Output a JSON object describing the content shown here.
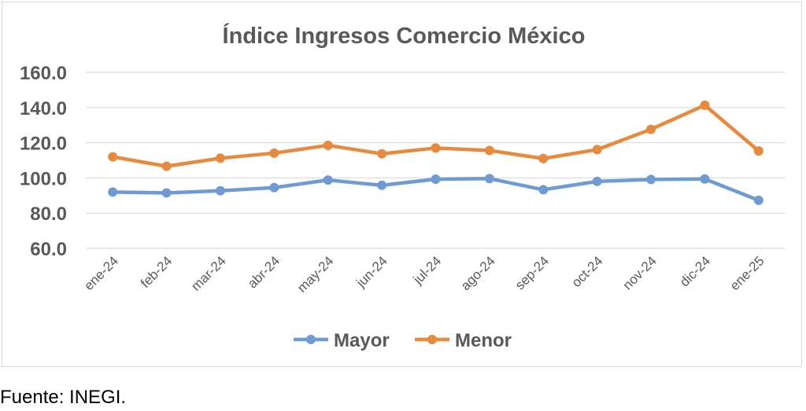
{
  "source_note": "Fuente: INEGI.",
  "chart_data": {
    "type": "line",
    "title": "Índice Ingresos Comercio México",
    "categories": [
      "ene-24",
      "feb-24",
      "mar-24",
      "abr-24",
      "may-24",
      "jun-24",
      "jul-24",
      "ago-24",
      "sep-24",
      "oct-24",
      "nov-24",
      "dic-24",
      "ene-25"
    ],
    "series": [
      {
        "name": "Mayor",
        "color": "#6f9bd2",
        "values": [
          92.0,
          91.5,
          92.7,
          94.5,
          98.8,
          95.8,
          99.3,
          99.6,
          93.3,
          98.0,
          99.1,
          99.4,
          87.3
        ]
      },
      {
        "name": "Menor",
        "color": "#e88a3e",
        "values": [
          112.0,
          106.6,
          111.2,
          114.1,
          118.5,
          113.7,
          117.0,
          115.6,
          111.0,
          116.1,
          127.6,
          141.3,
          115.3
        ]
      }
    ],
    "yticks": [
      "60.0",
      "80.0",
      "100.0",
      "120.0",
      "140.0",
      "160.0"
    ],
    "ylim": [
      60,
      160
    ],
    "grid": true,
    "legend_position": "bottom"
  }
}
